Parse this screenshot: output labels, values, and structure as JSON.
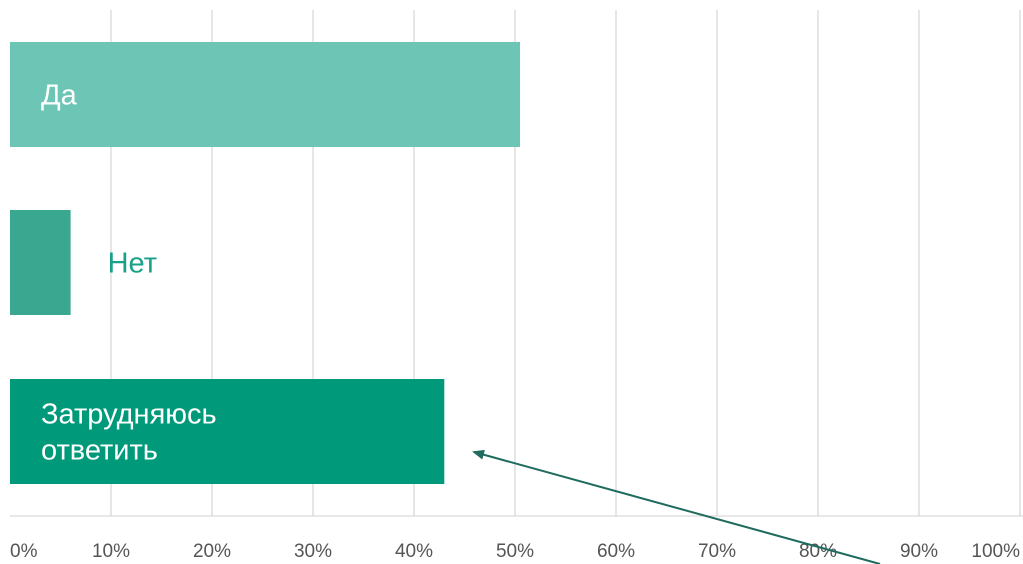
{
  "chart_data": {
    "type": "bar",
    "orientation": "horizontal",
    "title": "",
    "xlabel": "",
    "ylabel": "",
    "xlim": [
      0,
      100
    ],
    "grid": true,
    "legend": "none",
    "categories": [
      {
        "label": [
          "Да"
        ],
        "value": 50.5,
        "color": "#6cc5b5",
        "label_color": "#ffffff",
        "label_inside": true
      },
      {
        "label": [
          "Нет"
        ],
        "value": 6,
        "color": "#3aa891",
        "label_color": "#18a088",
        "label_inside": false
      },
      {
        "label": [
          "Затрудняюсь",
          "ответить"
        ],
        "value": 43,
        "color": "#009a7b",
        "label_color": "#ffffff",
        "label_inside": true
      }
    ],
    "ticks": [
      {
        "value": 0,
        "label": "0%"
      },
      {
        "value": 10,
        "label": "10%"
      },
      {
        "value": 20,
        "label": "20%"
      },
      {
        "value": 30,
        "label": "30%"
      },
      {
        "value": 40,
        "label": "40%"
      },
      {
        "value": 50,
        "label": "50%"
      },
      {
        "value": 60,
        "label": "60%"
      },
      {
        "value": 70,
        "label": "70%"
      },
      {
        "value": 80,
        "label": "80%"
      },
      {
        "value": 90,
        "label": "90%"
      },
      {
        "value": 100,
        "label": "100%"
      }
    ],
    "annotation": {
      "type": "arrow",
      "points_to": "Затрудняюсь ответить",
      "color": "#1f6b5e"
    }
  }
}
